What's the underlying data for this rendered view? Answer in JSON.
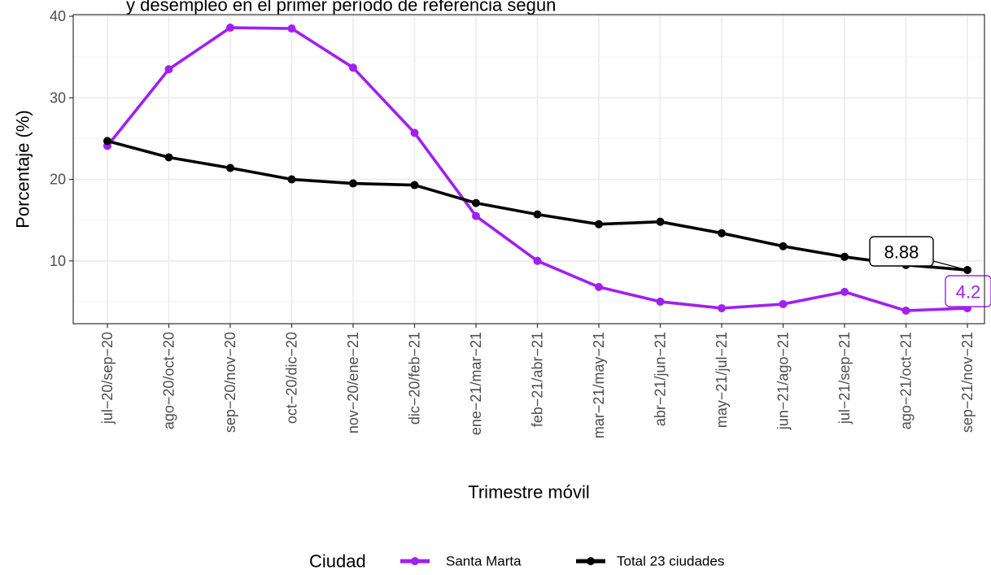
{
  "chart_data": {
    "type": "line",
    "title": "y desempleo en el primer período de referencia según",
    "xlabel": "Trimestre móvil",
    "ylabel": "Porcentaje (%)",
    "ylim": [
      2.3,
      40.2
    ],
    "yticks": [
      10,
      20,
      30,
      40
    ],
    "grid": true,
    "legend_position": "bottom",
    "legend_title": "Ciudad",
    "categories": [
      "jul−20/sep−20",
      "ago−20/oct−20",
      "sep−20/nov−20",
      "oct−20/dic−20",
      "nov−20/ene−21",
      "dic−20/feb−21",
      "ene−21/mar−21",
      "feb−21/abr−21",
      "mar−21/may−21",
      "abr−21/jun−21",
      "may−21/jul−21",
      "jun−21/ago−21",
      "jul−21/sep−21",
      "ago−21/oct−21",
      "sep−21/nov−21"
    ],
    "series": [
      {
        "name": "Santa Marta",
        "color": "#a020f0",
        "values": [
          24.1,
          33.5,
          38.6,
          38.5,
          33.7,
          25.7,
          15.5,
          10.0,
          6.8,
          5.0,
          4.2,
          4.7,
          6.2,
          3.9,
          4.2
        ],
        "end_label": "4.2"
      },
      {
        "name": "Total 23 ciudades",
        "color": "#000000",
        "values": [
          24.7,
          22.7,
          21.4,
          20.0,
          19.5,
          19.3,
          17.1,
          15.7,
          14.5,
          14.8,
          13.4,
          11.8,
          10.5,
          9.5,
          8.88
        ],
        "end_label": "8.88"
      }
    ]
  }
}
